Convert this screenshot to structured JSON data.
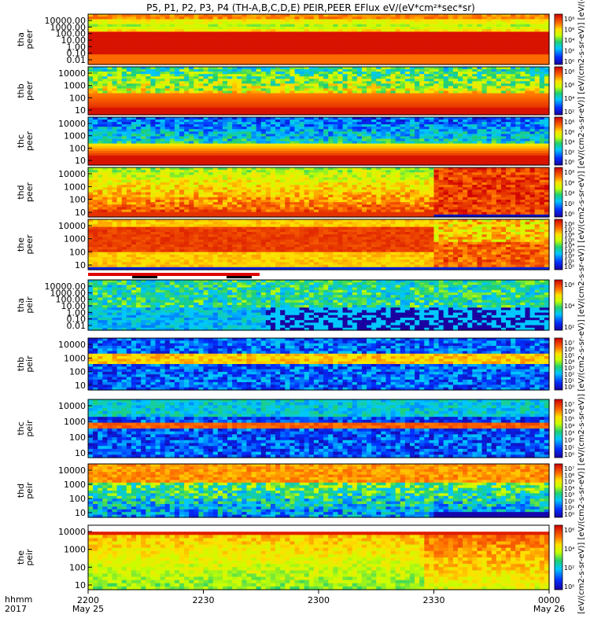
{
  "title": "P5, P1, P2, P3, P4 (TH-A,B,C,D,E) PEIR,PEER EFlux eV/(eV*cm²*sec*sr)",
  "colorbar_label": "[eV/(cm2-s-sr-eV)] [eV/(cm2-s-sr-eV)] [eV/(cm2-s-sr-eV)] [eV/(cm2-s-sr-eV)] [eV/(cm2-s-sr-eV)] [eV/(cm2-s-sr-eV)] [eV/(cm2-s-sr-eV)] [eV/(cm2-s-sr-eV)] [eV/(cm2-s-sr-eV)] [eV/(cm2-s-sr-eV)] (eV",
  "time_axis": {
    "row_label_1": "hhmm",
    "row_label_2": "2017",
    "ticks": [
      {
        "label": "2200",
        "sub": "May 25",
        "frac": 0.0
      },
      {
        "label": "2230",
        "sub": "",
        "frac": 0.25
      },
      {
        "label": "2300",
        "sub": "",
        "frac": 0.5
      },
      {
        "label": "2330",
        "sub": "",
        "frac": 0.75
      },
      {
        "label": "0000",
        "sub": "May 26",
        "frac": 1.0
      }
    ]
  },
  "chart_data": [
    {
      "type": "heatmap",
      "name": "tha peer",
      "ylabel": "tha\npeer",
      "yticks": [
        "10000.00",
        "1000.00",
        "100.00",
        "10.00",
        "1.00",
        "0.10",
        "0.01"
      ],
      "cbar_ticks": [
        "10⁸",
        "10⁶",
        "10⁴",
        "10²",
        "10⁰"
      ],
      "xrange": [
        "2200 May 25",
        "0000 May 26"
      ]
    },
    {
      "type": "heatmap",
      "name": "thb peer",
      "ylabel": "thb\npeer",
      "yticks": [
        "10000",
        "1000",
        "100",
        "10"
      ],
      "cbar_ticks": [
        "10⁸",
        "10⁶",
        "10⁴",
        "10²"
      ],
      "xrange": [
        "2200 May 25",
        "0000 May 26"
      ]
    },
    {
      "type": "heatmap",
      "name": "thc peer",
      "ylabel": "thc\npeer",
      "yticks": [
        "10000",
        "1000",
        "100",
        "10"
      ],
      "cbar_ticks": [
        "10⁸",
        "10⁶",
        "10⁴",
        "10²",
        "10⁰"
      ],
      "xrange": [
        "2200 May 25",
        "0000 May 26"
      ]
    },
    {
      "type": "heatmap",
      "name": "thd peer",
      "ylabel": "thd\npeer",
      "yticks": [
        "10000",
        "1000",
        "100",
        "10"
      ],
      "cbar_ticks": [
        "10⁸",
        "10⁶",
        "10⁴",
        "10²",
        "10⁰"
      ],
      "xrange": [
        "2200 May 25",
        "0000 May 26"
      ]
    },
    {
      "type": "heatmap",
      "name": "the peer",
      "ylabel": "the\npeer",
      "yticks": [
        "10000",
        "1000",
        "100",
        "10"
      ],
      "cbar_ticks": [
        "10⁸",
        "10⁷",
        "10⁶",
        "10⁵",
        "10⁴",
        "10³",
        "10²",
        "10¹",
        "10⁰"
      ],
      "xrange": [
        "2200 May 25",
        "0000 May 26"
      ]
    },
    {
      "type": "heatmap",
      "name": "tha peir",
      "ylabel": "tha\npeir",
      "yticks": [
        "10000.00",
        "1000.00",
        "100.00",
        "10.00",
        "1.00",
        "0.10",
        "0.01"
      ],
      "cbar_ticks": [
        "10⁶",
        "10⁴",
        "10²"
      ],
      "xrange": [
        "2200 May 25",
        "0000 May 26"
      ]
    },
    {
      "type": "heatmap",
      "name": "thb peir",
      "ylabel": "thb\npeir",
      "yticks": [
        "10000",
        "1000",
        "100",
        "10"
      ],
      "cbar_ticks": [
        "10⁷",
        "10⁶",
        "10⁵",
        "10⁴",
        "10³",
        "10²",
        "10¹",
        "10⁰"
      ],
      "xrange": [
        "2200 May 25",
        "0000 May 26"
      ]
    },
    {
      "type": "heatmap",
      "name": "thc peir",
      "ylabel": "thc\npeir",
      "yticks": [
        "10000",
        "1000",
        "100",
        "10"
      ],
      "cbar_ticks": [
        "10⁷",
        "10⁶",
        "10⁵",
        "10⁴",
        "10³",
        "10²",
        "10¹",
        "10⁰"
      ],
      "xrange": [
        "2200 May 25",
        "0000 May 26"
      ]
    },
    {
      "type": "heatmap",
      "name": "thd peir",
      "ylabel": "thd\npeir",
      "yticks": [
        "10000",
        "1000",
        "100",
        "10"
      ],
      "cbar_ticks": [
        "10⁷",
        "10⁶",
        "10⁵",
        "10⁴",
        "10³",
        "10²",
        "10¹",
        "10⁰"
      ],
      "xrange": [
        "2200 May 25",
        "0000 May 26"
      ]
    },
    {
      "type": "heatmap",
      "name": "the peir",
      "ylabel": "the\npeir",
      "yticks": [
        "10000",
        "1000",
        "100",
        "10"
      ],
      "cbar_ticks": [
        "10⁶",
        "10⁴",
        "10²",
        "10⁰"
      ],
      "xrange": [
        "2200 May 25",
        "0000 May 26"
      ]
    }
  ]
}
